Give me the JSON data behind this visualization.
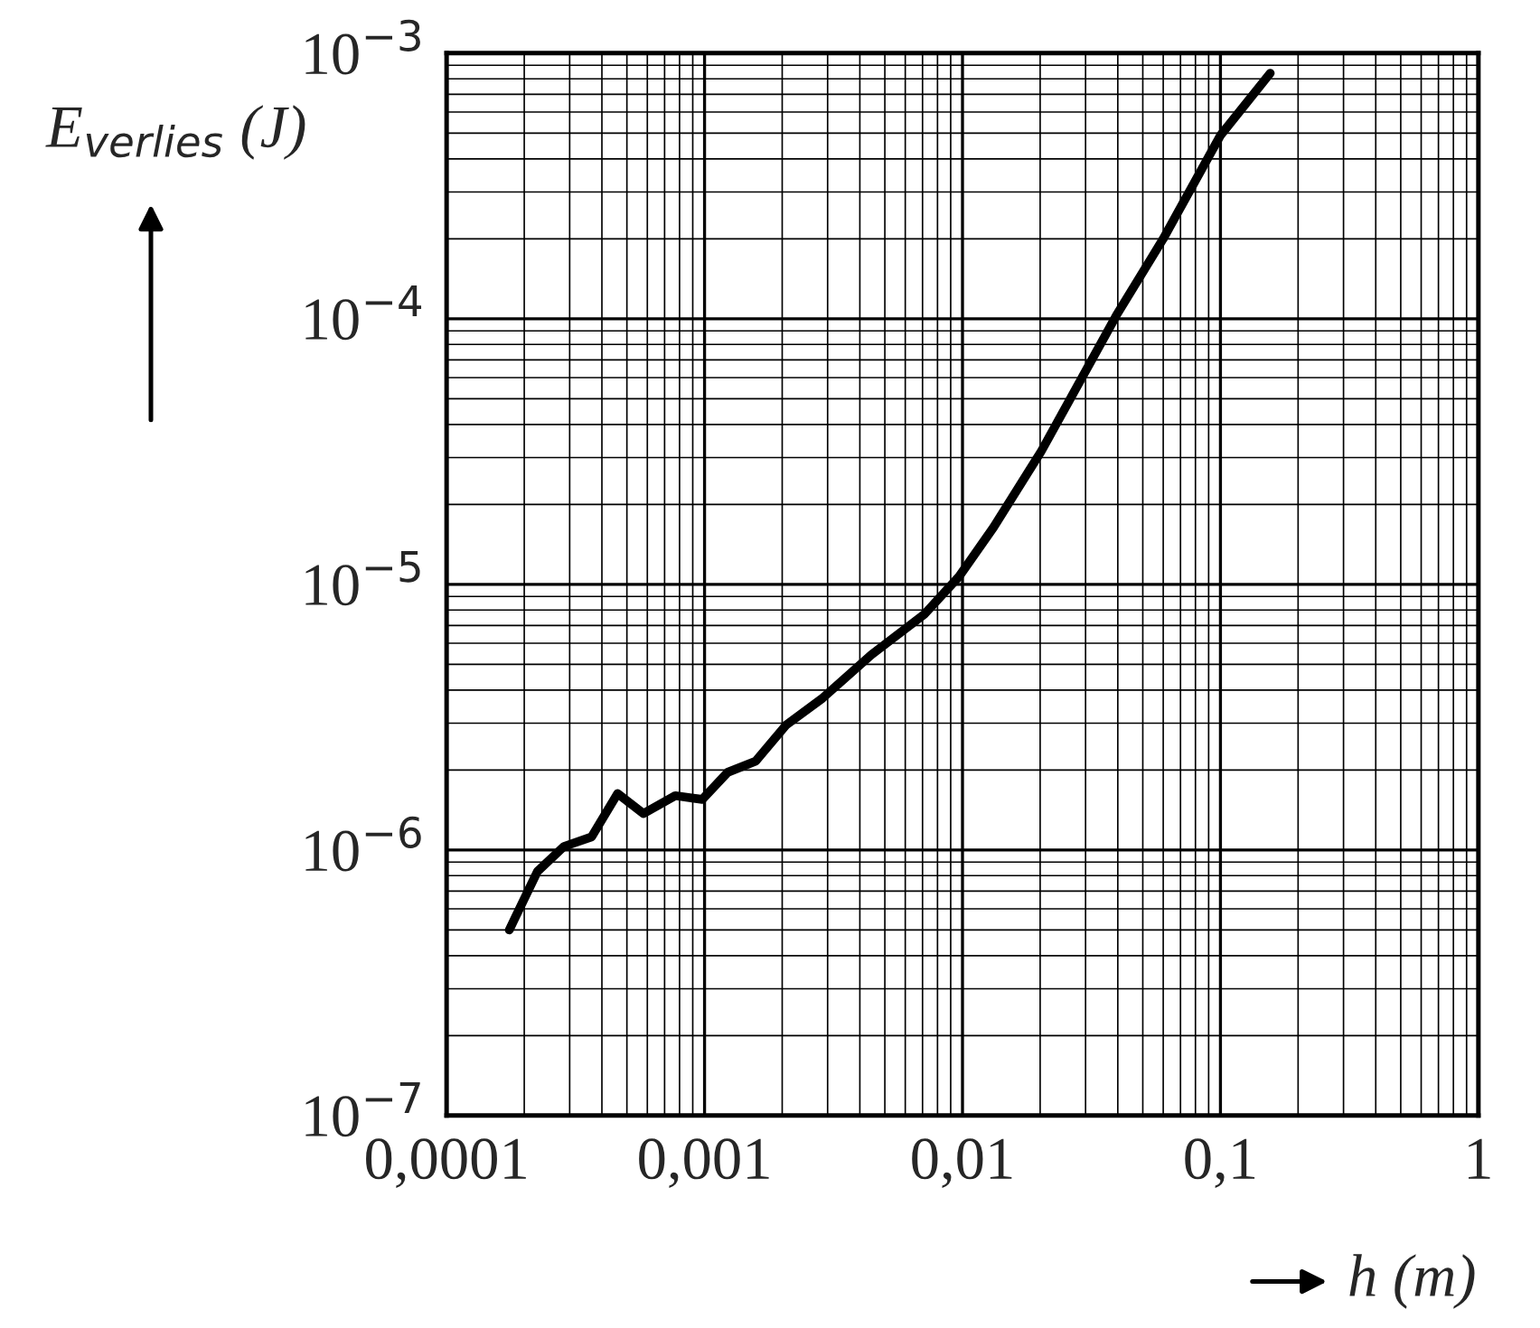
{
  "chart_data": {
    "type": "line",
    "xlabel": "h (m)",
    "ylabel": "E$_{verlies}$ (J)",
    "log": "xy",
    "grid": true,
    "line_style": "solid",
    "marker": "none",
    "xlim": [
      0.0001,
      1
    ],
    "xticks": [
      {
        "value": 0.0001,
        "label": "0,0001"
      },
      {
        "value": 0.001,
        "label": "0,001"
      },
      {
        "value": 0.01,
        "label": "0,01"
      },
      {
        "value": 0.1,
        "label": "0,1"
      },
      1
    ],
    "ylim": [
      1e-07,
      0.001
    ],
    "yticks": [
      {
        "value": 1e-07,
        "label": "10$^{−7}$"
      },
      {
        "value": 1e-06,
        "label": "10$^{−6}$"
      },
      {
        "value": 1e-05,
        "label": "10$^{−5}$"
      },
      {
        "value": 0.0001,
        "label": "10$^{−4}$"
      },
      {
        "value": 0.001,
        "label": "10$^{−3}$"
      }
    ],
    "series": [
      {
        "color": "#000000",
        "x": [
          0.000175,
          0.000225,
          0.000285,
          0.000365,
          0.00046,
          0.00058,
          0.00077,
          0.00098,
          0.00123,
          0.00158,
          0.00207,
          0.00287,
          0.00444,
          0.0071,
          0.0097,
          0.0132,
          0.0202,
          0.0395,
          0.06,
          0.1,
          0.156
        ],
        "values": [
          5e-07,
          8.3e-07,
          1.03e-06,
          1.12e-06,
          1.63e-06,
          1.37e-06,
          1.6e-06,
          1.55e-06,
          1.96e-06,
          2.16e-06,
          2.95e-06,
          3.73e-06,
          5.44e-06,
          7.7e-06,
          1.07e-05,
          1.64e-05,
          3.17e-05,
          0.000103,
          0.0002,
          0.00049,
          0.00084
        ]
      }
    ]
  }
}
